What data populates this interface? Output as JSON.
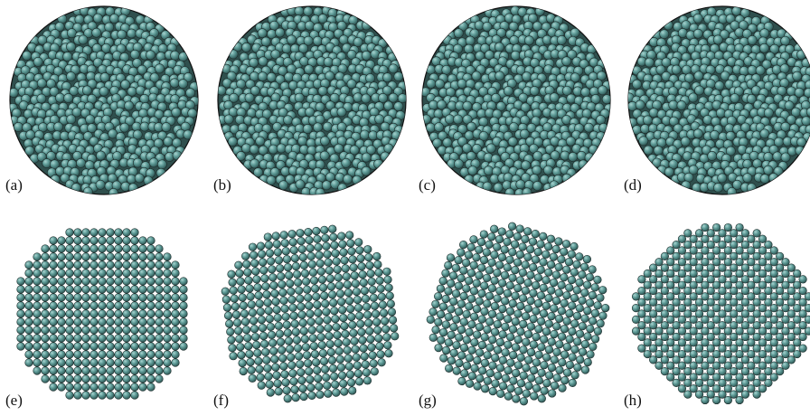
{
  "panels": [
    {
      "id": "a",
      "label": "(a)",
      "kind": "disordered"
    },
    {
      "id": "b",
      "label": "(b)",
      "kind": "disordered"
    },
    {
      "id": "c",
      "label": "(c)",
      "kind": "disordered"
    },
    {
      "id": "d",
      "label": "(d)",
      "kind": "disordered"
    },
    {
      "id": "e",
      "label": "(e)",
      "kind": "square-lattice",
      "rotation_deg": 0
    },
    {
      "id": "f",
      "label": "(f)",
      "kind": "square-lattice",
      "rotation_deg": -7
    },
    {
      "id": "g",
      "label": "(g)",
      "kind": "square-lattice",
      "rotation_deg": 18
    },
    {
      "id": "h",
      "label": "(h)",
      "kind": "square-lattice",
      "rotation_deg": 45
    }
  ],
  "colors": {
    "sphere_fill": "#5f9c98",
    "sphere_highlight": "#a8d3cf",
    "sphere_shadow": "#2e5654",
    "disk_background": "#2f4f4d",
    "outline": "#1d2d2c"
  }
}
